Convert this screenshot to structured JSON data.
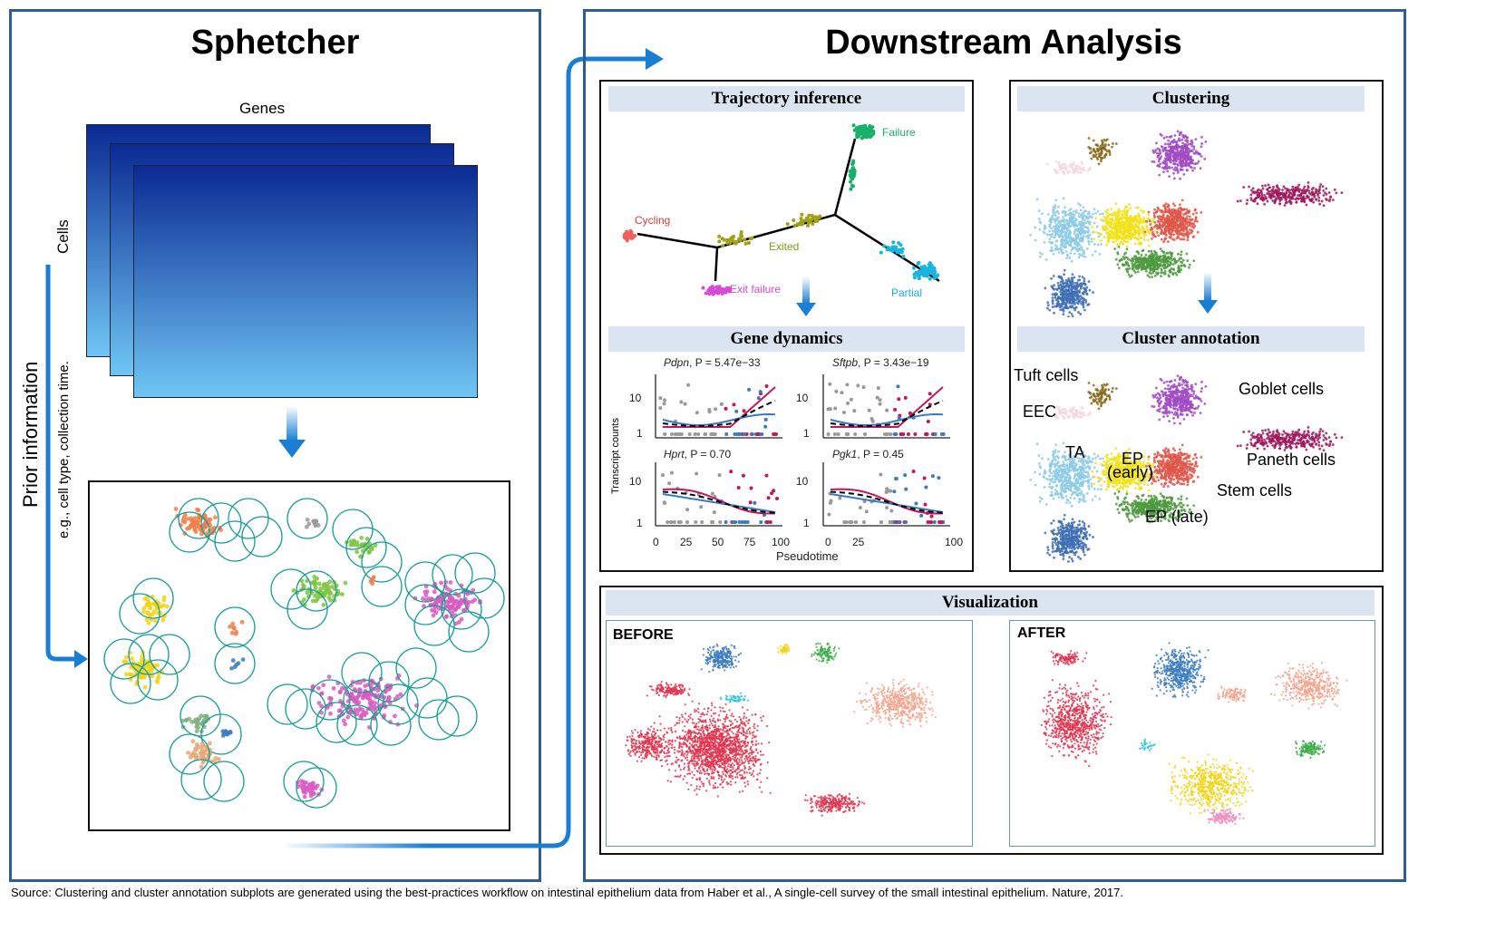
{
  "left": {
    "title": "Sphetcher",
    "genes_label": "Genes",
    "cells_label": "Cells",
    "prior_label": "Prior information",
    "prior_sub": "e.g., cell type, collection time."
  },
  "right": {
    "title": "Downstream Analysis",
    "trajectory": {
      "header": "Trajectory inference",
      "labels": [
        "Cycling",
        "Exited",
        "Exit failure",
        "Failure",
        "Partial"
      ]
    },
    "gene_dynamics": {
      "header": "Gene dynamics",
      "ylabel": "Transcript counts",
      "xlabel": "Pseudotime",
      "plots": [
        {
          "gene": "Pdpn",
          "p": ", P = 5.47e−33"
        },
        {
          "gene": "Sftpb",
          "p": ", P = 3.43e−19"
        },
        {
          "gene": "Hprt",
          "p": ", P = 0.70"
        },
        {
          "gene": "Pgk1",
          "p": ", P = 0.45"
        }
      ],
      "yticks": [
        "10",
        "1"
      ],
      "xticks_left": [
        "0",
        "25",
        "50",
        "75",
        "100"
      ],
      "xticks_right": [
        "0",
        "25",
        "100"
      ]
    },
    "clustering": {
      "header": "Clustering"
    },
    "annotation": {
      "header": "Cluster annotation",
      "labels": [
        "Tuft cells",
        "Goblet cells",
        "EEC",
        "TA",
        "EP",
        "(early)",
        "Paneth cells",
        "Stem cells",
        "EP (late)"
      ]
    },
    "visualization": {
      "header": "Visualization",
      "before": "BEFORE",
      "after": "AFTER"
    }
  },
  "footer": "Source: Clustering and cluster annotation subplots are generated using the best-practices workflow on intestinal epithelium data from Haber et al., A single-cell survey of the small intestinal epithelium. Nature, 2017.",
  "colors": {
    "panel_border": "#2f5c97",
    "header_bg": "#dbe5f2",
    "arrow": "#1a7fd4",
    "circle": "#1b9e9a",
    "orange": "#f07f4a",
    "yellow": "#f2d31a",
    "green": "#7fc440",
    "pink": "#d85cc2",
    "red": "#e2344e",
    "blue": "#3a7bbf",
    "salmon": "#f6a38c"
  }
}
